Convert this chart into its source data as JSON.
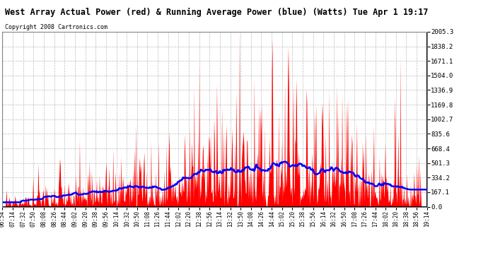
{
  "title": "West Array Actual Power (red) & Running Average Power (blue) (Watts) Tue Apr 1 19:17",
  "copyright": "Copyright 2008 Cartronics.com",
  "bg_color": "#ffffff",
  "plot_bg_color": "#ffffff",
  "title_color": "#000000",
  "grid_color": "#aaaaaa",
  "red_color": "#ff0000",
  "blue_color": "#0000ff",
  "yticks": [
    0.0,
    167.1,
    334.2,
    501.3,
    668.4,
    835.6,
    1002.7,
    1169.8,
    1336.9,
    1504.0,
    1671.1,
    1838.2,
    2005.3
  ],
  "ylim": [
    0,
    2005.3
  ],
  "xtick_labels": [
    "06:54",
    "07:14",
    "07:32",
    "07:50",
    "08:08",
    "08:26",
    "08:44",
    "09:02",
    "09:20",
    "09:38",
    "09:56",
    "10:14",
    "10:32",
    "10:50",
    "11:08",
    "11:26",
    "11:44",
    "12:02",
    "12:20",
    "12:38",
    "12:56",
    "13:14",
    "13:32",
    "13:50",
    "14:08",
    "14:26",
    "14:44",
    "15:02",
    "15:20",
    "15:38",
    "15:56",
    "16:14",
    "16:32",
    "16:50",
    "17:08",
    "17:26",
    "17:44",
    "18:02",
    "18:20",
    "18:38",
    "18:56",
    "19:14"
  ]
}
